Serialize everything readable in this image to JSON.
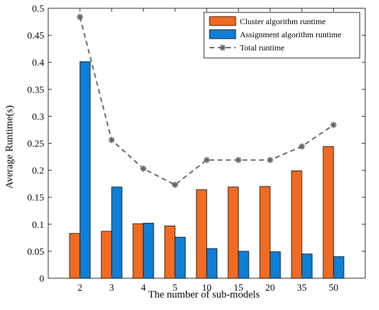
{
  "chart_data": {
    "type": "bar",
    "categories": [
      "2",
      "3",
      "4",
      "5",
      "10",
      "15",
      "20",
      "35",
      "50"
    ],
    "series": [
      {
        "name": "Cluster algorithm runtime",
        "type": "bar",
        "color": "#F26B22",
        "values": [
          0.083,
          0.087,
          0.101,
          0.097,
          0.164,
          0.169,
          0.17,
          0.199,
          0.244
        ]
      },
      {
        "name": "Assignment algorithm runtime",
        "type": "bar",
        "color": "#0F7FD6",
        "values": [
          0.401,
          0.169,
          0.102,
          0.076,
          0.055,
          0.05,
          0.049,
          0.045,
          0.04
        ]
      },
      {
        "name": "Total runtime",
        "type": "line",
        "color": "#666666",
        "line_style": "dashed",
        "marker": "asterisk",
        "values": [
          0.484,
          0.256,
          0.203,
          0.173,
          0.219,
          0.219,
          0.219,
          0.244,
          0.284
        ]
      }
    ],
    "xlabel": "The number of sub-models",
    "ylabel": "Average Runtime(s)",
    "ylim": [
      0,
      0.5
    ],
    "yticks": [
      "0",
      "0.05",
      "0.1",
      "0.15",
      "0.2",
      "0.25",
      "0.3",
      "0.35",
      "0.4",
      "0.45",
      "0.5"
    ],
    "grid": false,
    "legend_position": "top-right"
  }
}
